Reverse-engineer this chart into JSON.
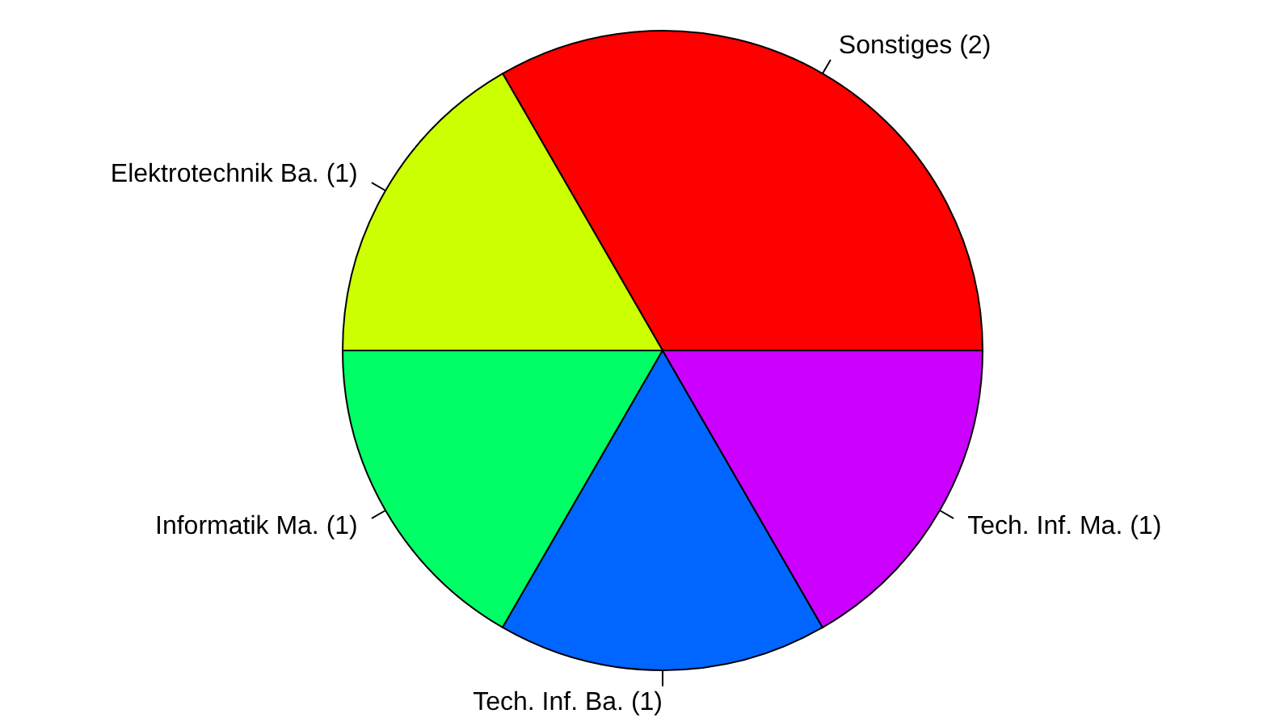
{
  "chart_data": {
    "type": "pie",
    "categories": [
      "Sonstiges (2)",
      "Elektrotechnik Ba. (1)",
      "Informatik Ma. (1)",
      "Tech. Inf. Ba. (1)",
      "Tech. Inf. Ma. (1)"
    ],
    "values": [
      2,
      1,
      1,
      1,
      1
    ],
    "colors": [
      "#ff0000",
      "#ccff00",
      "#00ff66",
      "#0066ff",
      "#cc00ff"
    ],
    "legend": false
  }
}
